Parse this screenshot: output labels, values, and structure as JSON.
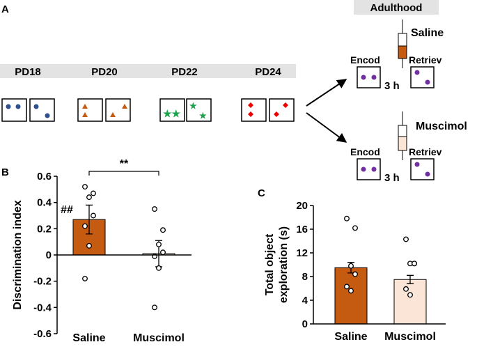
{
  "diagram": {
    "panel_labels": [
      "A",
      "B",
      "C"
    ],
    "days": [
      "PD18",
      "PD20",
      "PD22",
      "PD24"
    ],
    "adult": "Adulthood",
    "groups": [
      {
        "name": "Saline",
        "encode": "Encod",
        "delay": "3 h",
        "retrieve": "Retriev"
      },
      {
        "name": "Muscimol",
        "encode": "Encod",
        "delay": "3 h",
        "retrieve": "Retriev"
      }
    ]
  },
  "chart_data": [
    {
      "type": "bar",
      "ylabel": "Discrimination index",
      "categories": [
        "Saline",
        "Muscimol"
      ],
      "values": [
        0.27,
        0.01
      ],
      "errors": [
        0.11,
        0.1
      ],
      "colors": [
        "#c55a11",
        "#fbe5d6"
      ],
      "points": [
        [
          0.52,
          0.47,
          0.44,
          0.3,
          0.22,
          0.07,
          -0.18
        ],
        [
          0.35,
          0.19,
          0.08,
          0.02,
          -0.01,
          -0.1,
          -0.4
        ]
      ],
      "annotations": [
        "##",
        "**"
      ],
      "ylim": [
        -0.6,
        0.6
      ],
      "yticks": [
        -0.6,
        -0.4,
        -0.2,
        0,
        0.2,
        0.4,
        0.6
      ]
    },
    {
      "type": "bar",
      "ylabel": [
        "Total object",
        "exploration (s)"
      ],
      "categories": [
        "Saline",
        "Muscimol"
      ],
      "values": [
        9.5,
        7.5
      ],
      "errors": [
        0.9,
        0.7
      ],
      "colors": [
        "#c55a11",
        "#fbe5d6"
      ],
      "points": [
        [
          17.8,
          16.2,
          9.8,
          8.4,
          6.3,
          5.6
        ],
        [
          14.3,
          10.2,
          10.2,
          10.2,
          5.9,
          4.9
        ]
      ],
      "ylim": [
        0,
        20
      ],
      "yticks": [
        0,
        4,
        8,
        12,
        16,
        20
      ]
    }
  ]
}
